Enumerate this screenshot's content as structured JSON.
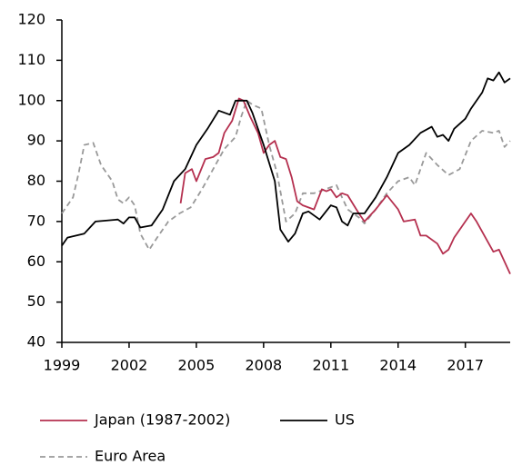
{
  "chart_data": {
    "type": "line",
    "xlim": [
      1999,
      2019
    ],
    "xticks": [
      1999,
      2002,
      2005,
      2008,
      2011,
      2014,
      2017
    ],
    "ylim": [
      40,
      120
    ],
    "yticks": [
      40,
      50,
      60,
      70,
      80,
      90,
      100,
      110,
      120
    ],
    "series": [
      {
        "name": "Japan (1987-2002)",
        "color": "#b5304f",
        "dash": false,
        "x": [
          2004.3,
          2004.5,
          2004.8,
          2005,
          2005.4,
          2005.75,
          2006,
          2006.25,
          2006.6,
          2006.9,
          2007.1,
          2007.4,
          2007.75,
          2008,
          2008.25,
          2008.5,
          2008.75,
          2009,
          2009.25,
          2009.5,
          2009.75,
          2010.25,
          2010.6,
          2010.8,
          2011,
          2011.25,
          2011.5,
          2011.75,
          2012.25,
          2012.5,
          2013,
          2013.5,
          2014,
          2014.25,
          2014.75,
          2015,
          2015.25,
          2015.75,
          2016,
          2016.25,
          2016.5,
          2017,
          2017.25,
          2017.5,
          2018,
          2018.25,
          2018.5,
          2019
        ],
        "values": [
          74.5,
          82,
          83,
          80,
          85.5,
          86,
          87,
          92,
          95,
          100.5,
          100,
          96,
          92,
          87,
          89,
          90,
          86,
          85.5,
          81,
          75,
          74,
          73,
          78,
          77.5,
          78,
          76,
          77,
          76.5,
          72,
          70,
          73,
          76.5,
          73,
          70,
          70.5,
          66.5,
          66.5,
          64.5,
          62,
          63,
          66,
          70,
          72,
          70,
          65,
          62.5,
          63,
          57
        ]
      },
      {
        "name": "US",
        "color": "#000000",
        "dash": false,
        "x": [
          1999,
          1999.25,
          2000,
          2000.5,
          2001.5,
          2001.75,
          2002,
          2002.25,
          2002.5,
          2003,
          2003.5,
          2004,
          2004.5,
          2005,
          2005.5,
          2006,
          2006.5,
          2006.75,
          2007.25,
          2007.5,
          2008,
          2008.5,
          2008.75,
          2009.1,
          2009.4,
          2009.75,
          2010,
          2010.5,
          2011,
          2011.25,
          2011.5,
          2011.75,
          2012,
          2012.5,
          2013,
          2013.5,
          2014,
          2014.5,
          2015,
          2015.5,
          2015.75,
          2016,
          2016.25,
          2016.5,
          2017,
          2017.25,
          2017.75,
          2018,
          2018.25,
          2018.5,
          2018.75,
          2019
        ],
        "values": [
          64,
          66,
          67,
          70,
          70.5,
          69.5,
          71,
          71,
          68.5,
          69,
          73,
          80,
          83,
          89,
          93,
          97.5,
          96.5,
          100,
          100,
          97,
          89,
          80,
          68,
          65,
          67,
          72,
          72.5,
          70.5,
          74,
          73.5,
          70,
          69,
          72,
          72,
          76,
          81,
          87,
          89,
          92,
          93.5,
          91,
          91.5,
          90,
          93,
          95.5,
          98,
          102,
          105.5,
          105,
          107,
          104.5,
          105.5
        ]
      },
      {
        "name": "Euro Area",
        "color": "#999999",
        "dash": true,
        "x": [
          1999,
          1999.5,
          1999.75,
          2000,
          2000.4,
          2000.75,
          2001.25,
          2001.5,
          2001.75,
          2002,
          2002.25,
          2002.5,
          2002.9,
          2003.25,
          2003.75,
          2004.25,
          2004.75,
          2005.25,
          2005.75,
          2006.25,
          2006.75,
          2007,
          2007.25,
          2007.5,
          2007.9,
          2008.25,
          2008.6,
          2009,
          2009.4,
          2009.75,
          2010.25,
          2010.75,
          2011.25,
          2011.5,
          2011.75,
          2012.25,
          2012.5,
          2013,
          2013.5,
          2014,
          2014.5,
          2014.75,
          2015.25,
          2015.75,
          2016.25,
          2016.75,
          2017.25,
          2017.75,
          2018.25,
          2018.5,
          2018.75,
          2019
        ],
        "values": [
          72,
          76,
          82,
          89,
          89.5,
          84,
          80,
          75.5,
          74.5,
          76,
          74,
          67,
          63,
          66,
          70,
          72,
          73.5,
          78,
          83,
          88,
          91,
          96,
          100,
          99,
          98,
          89,
          82,
          70,
          72,
          77,
          77,
          78,
          79,
          76,
          73,
          71,
          69.5,
          73,
          77,
          80,
          81,
          79,
          87,
          84,
          81.5,
          83,
          90,
          92.5,
          92,
          92.5,
          88.5,
          90
        ]
      }
    ]
  }
}
